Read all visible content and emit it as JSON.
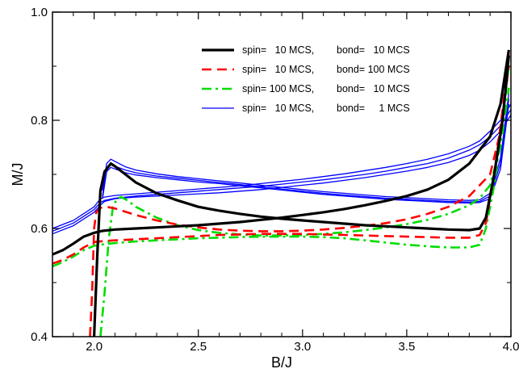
{
  "chart_data": {
    "type": "line",
    "xlabel": "B/J",
    "ylabel": "M/J",
    "xlim": [
      1.8,
      4.0
    ],
    "ylim": [
      0.4,
      1.0
    ],
    "x_ticks": [
      2.0,
      2.5,
      3.0,
      3.5,
      4.0
    ],
    "x_tick_labels": [
      "2.0",
      "2.5",
      "3.0",
      "3.5",
      "4.0"
    ],
    "y_ticks": [
      0.4,
      0.6,
      0.8,
      1.0
    ],
    "y_tick_labels": [
      "0.4",
      "0.6",
      "0.8",
      "1.0"
    ],
    "grid": false,
    "legend_position": "top-right",
    "legend": [
      {
        "spin": "spin=   10 MCS,",
        "bond": "bond=   10 MCS"
      },
      {
        "spin": "spin=   10 MCS,",
        "bond": "bond= 100 MCS"
      },
      {
        "spin": "spin= 100 MCS,",
        "bond": "bond=   10 MCS"
      },
      {
        "spin": "spin=   10 MCS,",
        "bond": "bond=     1 MCS"
      }
    ],
    "series": [
      {
        "color": "#000000",
        "dash": "solid",
        "width": 3.2,
        "branches": [
          {
            "x": [
              1.8,
              1.85,
              1.9,
              1.95,
              2.0,
              2.03,
              2.05,
              2.1,
              2.2,
              2.3,
              2.4,
              2.5,
              2.6,
              2.7,
              2.8,
              2.9,
              3.0,
              3.1,
              3.2,
              3.3,
              3.4,
              3.5,
              3.6,
              3.7,
              3.8,
              3.9,
              3.95,
              3.99
            ],
            "y": [
              0.552,
              0.56,
              0.572,
              0.585,
              0.592,
              0.595,
              0.596,
              0.598,
              0.6,
              0.602,
              0.604,
              0.606,
              0.609,
              0.612,
              0.616,
              0.62,
              0.625,
              0.63,
              0.636,
              0.643,
              0.651,
              0.66,
              0.672,
              0.69,
              0.72,
              0.77,
              0.83,
              0.93
            ]
          },
          {
            "x": [
              2.0,
              2.005,
              2.015,
              2.03,
              2.05,
              2.08,
              2.1,
              2.15,
              2.2,
              2.3,
              2.4,
              2.5,
              2.6,
              2.7,
              2.8,
              2.9,
              3.0,
              3.1,
              3.2,
              3.3,
              3.4,
              3.5,
              3.6,
              3.7,
              3.8,
              3.85,
              3.88,
              3.92,
              3.96,
              3.99
            ],
            "y": [
              0.4,
              0.45,
              0.55,
              0.67,
              0.705,
              0.72,
              0.715,
              0.7,
              0.685,
              0.665,
              0.652,
              0.64,
              0.633,
              0.627,
              0.622,
              0.618,
              0.615,
              0.612,
              0.609,
              0.606,
              0.604,
              0.602,
              0.6,
              0.598,
              0.597,
              0.6,
              0.62,
              0.7,
              0.8,
              0.92
            ]
          }
        ]
      },
      {
        "color": "#ff0000",
        "dash": "12,7",
        "width": 2.6,
        "branches": [
          {
            "x": [
              1.8,
              1.85,
              1.9,
              1.95,
              2.0,
              2.05,
              2.1,
              2.2,
              2.3,
              2.4,
              2.5,
              2.6,
              2.7,
              2.8,
              2.9,
              3.0,
              3.1,
              3.2,
              3.3,
              3.4,
              3.5,
              3.6,
              3.7,
              3.8,
              3.85,
              3.88,
              3.92,
              3.96,
              3.99
            ],
            "y": [
              0.535,
              0.542,
              0.552,
              0.565,
              0.575,
              0.577,
              0.578,
              0.58,
              0.582,
              0.584,
              0.586,
              0.588,
              0.589,
              0.59,
              0.59,
              0.59,
              0.589,
              0.588,
              0.587,
              0.586,
              0.585,
              0.584,
              0.583,
              0.583,
              0.588,
              0.61,
              0.7,
              0.82,
              0.925
            ]
          },
          {
            "x": [
              1.98,
              1.99,
              2.0,
              2.01,
              2.03,
              2.06,
              2.1,
              2.2,
              2.3,
              2.4,
              2.5,
              2.6,
              2.7,
              2.8,
              2.9,
              3.0,
              3.1,
              3.2,
              3.3,
              3.4,
              3.5,
              3.6,
              3.7,
              3.8,
              3.9,
              3.95,
              3.99
            ],
            "y": [
              0.4,
              0.48,
              0.6,
              0.63,
              0.638,
              0.64,
              0.637,
              0.625,
              0.615,
              0.607,
              0.602,
              0.598,
              0.596,
              0.595,
              0.595,
              0.596,
              0.598,
              0.601,
              0.605,
              0.61,
              0.617,
              0.627,
              0.64,
              0.66,
              0.7,
              0.78,
              0.9
            ]
          }
        ]
      },
      {
        "color": "#00dd00",
        "dash": "12,5,3,5",
        "width": 2.6,
        "branches": [
          {
            "x": [
              1.8,
              1.85,
              1.9,
              1.95,
              2.0,
              2.05,
              2.1,
              2.2,
              2.3,
              2.4,
              2.5,
              2.6,
              2.7,
              2.8,
              2.9,
              3.0,
              3.1,
              3.2,
              3.3,
              3.4,
              3.5,
              3.6,
              3.7,
              3.8,
              3.85,
              3.88,
              3.92,
              3.96,
              3.99
            ],
            "y": [
              0.53,
              0.538,
              0.548,
              0.56,
              0.568,
              0.571,
              0.573,
              0.576,
              0.578,
              0.58,
              0.582,
              0.583,
              0.584,
              0.585,
              0.585,
              0.585,
              0.584,
              0.582,
              0.578,
              0.574,
              0.57,
              0.567,
              0.565,
              0.565,
              0.57,
              0.6,
              0.68,
              0.8,
              0.9
            ]
          },
          {
            "x": [
              2.03,
              2.05,
              2.07,
              2.09,
              2.11,
              2.13,
              2.16,
              2.2,
              2.3,
              2.4,
              2.5,
              2.6,
              2.7,
              2.8,
              2.9,
              3.0,
              3.1,
              3.2,
              3.3,
              3.4,
              3.5,
              3.6,
              3.7,
              3.8,
              3.85,
              3.9,
              3.95,
              3.99
            ],
            "y": [
              0.4,
              0.48,
              0.58,
              0.64,
              0.655,
              0.658,
              0.652,
              0.64,
              0.62,
              0.606,
              0.597,
              0.592,
              0.589,
              0.587,
              0.587,
              0.588,
              0.59,
              0.593,
              0.597,
              0.602,
              0.608,
              0.616,
              0.627,
              0.643,
              0.656,
              0.68,
              0.75,
              0.86
            ]
          }
        ]
      },
      {
        "color": "#0000ff",
        "dash": "solid",
        "width": 1.3,
        "branches": [
          {
            "x": [
              1.8,
              1.9,
              2.0,
              2.03,
              2.05,
              2.1,
              2.2,
              2.3,
              2.4,
              2.5,
              2.6,
              2.7,
              2.8,
              2.9,
              3.0,
              3.1,
              3.2,
              3.3,
              3.4,
              3.5,
              3.6,
              3.7,
              3.8,
              3.85,
              3.9,
              3.95,
              4.0
            ],
            "y": [
              0.595,
              0.61,
              0.635,
              0.648,
              0.652,
              0.656,
              0.66,
              0.663,
              0.666,
              0.669,
              0.672,
              0.675,
              0.678,
              0.682,
              0.686,
              0.69,
              0.695,
              0.7,
              0.706,
              0.713,
              0.72,
              0.73,
              0.745,
              0.755,
              0.77,
              0.79,
              0.82
            ]
          },
          {
            "x": [
              1.8,
              1.9,
              2.0,
              2.03,
              2.05,
              2.1,
              2.2,
              2.3,
              2.4,
              2.5,
              2.6,
              2.7,
              2.8,
              2.9,
              3.0,
              3.1,
              3.2,
              3.3,
              3.4,
              3.5,
              3.6,
              3.7,
              3.8,
              3.85,
              3.9,
              3.95,
              4.0
            ],
            "y": [
              0.59,
              0.605,
              0.63,
              0.643,
              0.65,
              0.655,
              0.658,
              0.66,
              0.662,
              0.664,
              0.666,
              0.669,
              0.672,
              0.676,
              0.68,
              0.684,
              0.689,
              0.694,
              0.7,
              0.706,
              0.713,
              0.722,
              0.735,
              0.745,
              0.76,
              0.78,
              0.81
            ]
          },
          {
            "x": [
              1.8,
              1.9,
              2.0,
              2.03,
              2.05,
              2.1,
              2.2,
              2.3,
              2.4,
              2.5,
              2.6,
              2.7,
              2.8,
              2.9,
              3.0,
              3.1,
              3.2,
              3.3,
              3.4,
              3.5,
              3.6,
              3.7,
              3.8,
              3.85,
              3.9,
              3.95,
              4.0
            ],
            "y": [
              0.6,
              0.615,
              0.64,
              0.655,
              0.658,
              0.661,
              0.664,
              0.667,
              0.67,
              0.673,
              0.676,
              0.679,
              0.683,
              0.687,
              0.691,
              0.696,
              0.701,
              0.707,
              0.713,
              0.72,
              0.728,
              0.738,
              0.752,
              0.762,
              0.78,
              0.8,
              0.83
            ]
          },
          {
            "x": [
              2.04,
              2.06,
              2.08,
              2.1,
              2.15,
              2.2,
              2.3,
              2.4,
              2.5,
              2.6,
              2.7,
              2.8,
              2.9,
              3.0,
              3.1,
              3.2,
              3.3,
              3.4,
              3.5,
              3.6,
              3.7,
              3.8,
              3.85,
              3.9,
              3.95,
              3.99
            ],
            "y": [
              0.66,
              0.712,
              0.72,
              0.715,
              0.708,
              0.703,
              0.697,
              0.693,
              0.689,
              0.685,
              0.681,
              0.677,
              0.673,
              0.669,
              0.665,
              0.662,
              0.659,
              0.656,
              0.654,
              0.652,
              0.65,
              0.649,
              0.65,
              0.66,
              0.72,
              0.84
            ]
          },
          {
            "x": [
              2.04,
              2.06,
              2.08,
              2.1,
              2.15,
              2.2,
              2.3,
              2.4,
              2.5,
              2.6,
              2.7,
              2.8,
              2.9,
              3.0,
              3.1,
              3.2,
              3.3,
              3.4,
              3.5,
              3.6,
              3.7,
              3.8,
              3.85,
              3.9,
              3.95,
              3.99
            ],
            "y": [
              0.67,
              0.72,
              0.728,
              0.724,
              0.714,
              0.708,
              0.701,
              0.696,
              0.692,
              0.688,
              0.684,
              0.68,
              0.676,
              0.672,
              0.668,
              0.665,
              0.662,
              0.659,
              0.657,
              0.655,
              0.653,
              0.652,
              0.653,
              0.665,
              0.73,
              0.85
            ]
          },
          {
            "x": [
              2.04,
              2.06,
              2.08,
              2.1,
              2.15,
              2.2,
              2.3,
              2.4,
              2.5,
              2.6,
              2.7,
              2.8,
              2.9,
              3.0,
              3.1,
              3.2,
              3.3,
              3.4,
              3.5,
              3.6,
              3.7,
              3.8,
              3.85,
              3.9,
              3.95,
              3.99
            ],
            "y": [
              0.655,
              0.705,
              0.713,
              0.71,
              0.703,
              0.699,
              0.694,
              0.69,
              0.686,
              0.683,
              0.679,
              0.675,
              0.671,
              0.667,
              0.663,
              0.66,
              0.657,
              0.654,
              0.652,
              0.65,
              0.648,
              0.647,
              0.648,
              0.655,
              0.71,
              0.83
            ]
          }
        ]
      }
    ]
  }
}
